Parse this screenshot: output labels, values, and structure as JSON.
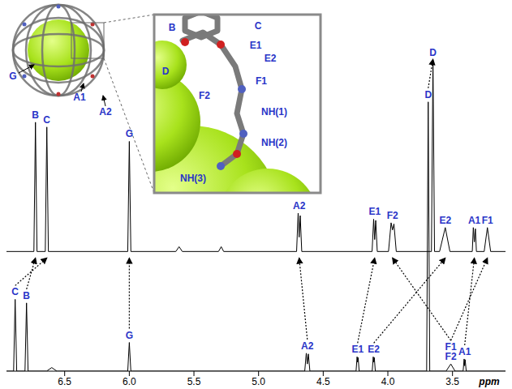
{
  "chart_data": {
    "type": "line",
    "xlabel": "ppm",
    "xlim": [
      6.95,
      3.09
    ],
    "xticks": [
      6.5,
      {
        "value": 6,
        "label": "6.0"
      },
      5.5,
      {
        "value": 5,
        "label": "5.0"
      },
      4.5,
      {
        "value": 4,
        "label": "4.0"
      },
      3.5
    ],
    "ylim": [
      0,
      100
    ],
    "y2lim": [
      -50,
      100
    ],
    "tick_labels": "x",
    "series": [
      {
        "axis": "y2",
        "color": "#000000",
        "x": [
          6.95,
          6.738,
          6.726,
          6.714,
          6.65,
          6.638,
          6.626,
          6.012,
          6.0,
          5.988,
          5.64,
          5.615,
          5.59,
          5.31,
          5.289,
          5.27,
          4.706,
          4.694,
          4.686,
          4.678,
          4.666,
          4.122,
          4.11,
          4.102,
          4.094,
          4.082,
          3.995,
          3.975,
          3.964,
          3.953,
          3.935,
          3.663,
          3.651,
          3.639,
          3.6,
          3.556,
          3.52,
          3.347,
          3.339,
          3.331,
          3.323,
          3.315,
          3.255,
          3.23,
          3.205,
          3.09
        ],
        "values": [
          0,
          0,
          54,
          0,
          0,
          52,
          0,
          0,
          46,
          0,
          0,
          2,
          0,
          0,
          2,
          0,
          0,
          16,
          6,
          15,
          0,
          0,
          13.5,
          5,
          13,
          0,
          0,
          12,
          9,
          11.5,
          0,
          0,
          80,
          0,
          0,
          10,
          0,
          0,
          10,
          4,
          9.5,
          0,
          0,
          10,
          0,
          0
        ],
        "peak_labels": [
          {
            "label": "B",
            "x": 6.726
          },
          {
            "label": "C",
            "x": 6.638
          },
          {
            "label": "G",
            "x": 6.0
          },
          {
            "label": "A2",
            "x": 4.686
          },
          {
            "label": "E1",
            "x": 4.102
          },
          {
            "label": "F2",
            "x": 3.964
          },
          {
            "label": "D",
            "x": 3.651
          },
          {
            "label": "E2",
            "x": 3.556
          },
          {
            "label": "A1",
            "x": 3.331
          },
          {
            "label": "F1",
            "x": 3.23
          }
        ]
      },
      {
        "color": "#000000",
        "x": [
          6.95,
          6.895,
          6.883,
          6.871,
          6.807,
          6.795,
          6.783,
          6.64,
          6.6,
          6.56,
          6.012,
          6.0,
          5.988,
          4.643,
          4.631,
          4.623,
          4.615,
          4.603,
          4.246,
          4.238,
          4.234,
          4.23,
          4.222,
          4.121,
          4.113,
          4.109,
          4.105,
          4.097,
          3.7,
          3.688,
          3.676,
          3.55,
          3.513,
          3.48,
          3.418,
          3.41,
          3.406,
          3.402,
          3.394,
          3.09
        ],
        "values": [
          0,
          0,
          20,
          0,
          0,
          19,
          0,
          0,
          1,
          0,
          0,
          8,
          0,
          0,
          5,
          2,
          4.8,
          0,
          0,
          4,
          2.5,
          3.8,
          0,
          0,
          4,
          2.5,
          3.8,
          0,
          0,
          75,
          0,
          0,
          2,
          0,
          0,
          3.4,
          1.5,
          3.2,
          0,
          0
        ],
        "peak_labels": [
          {
            "label": "C",
            "x": 6.883
          },
          {
            "label": "B",
            "x": 6.795
          },
          {
            "label": "G",
            "x": 6.0
          },
          {
            "label": "A2",
            "x": 4.623
          },
          {
            "label": "E1",
            "x": 4.234
          },
          {
            "label": "E2",
            "x": 4.109
          },
          {
            "label": "D",
            "x": 3.688
          },
          {
            "label": "F1",
            "x": 3.513
          },
          {
            "label": "F2",
            "x": 3.513
          },
          {
            "label": "A1",
            "x": 3.406
          }
        ]
      }
    ]
  },
  "insets": {
    "overview": {
      "labels": [
        "G",
        "A1",
        "A2"
      ]
    },
    "zoom": {
      "labels": [
        "B",
        "C",
        "D",
        "E1",
        "E2",
        "F1",
        "F2",
        "NH(1)",
        "NH(2)",
        "NH(3)"
      ]
    }
  }
}
